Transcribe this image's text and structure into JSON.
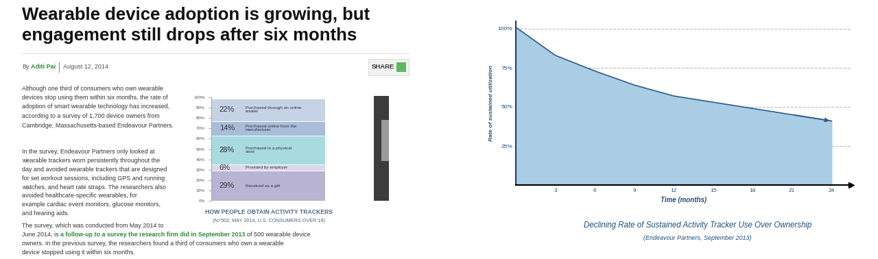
{
  "article": {
    "headline": [
      "Wearable device adoption is growing, but",
      "engagement still drops after six months"
    ],
    "byline_prefix": "By",
    "author": "Aditi Pai",
    "date": "August 12, 2014",
    "share": "SHARE",
    "paragraphs": [
      {
        "lines": [
          "Although one third of consumers who own wearable",
          "devices stop using them within six months, the rate of",
          "adoption of smart wearable technology has increased,",
          "according to a survey of 1,700 device owners from",
          "Cambridge, Massachusetts-based Endeavour Partners."
        ]
      },
      {
        "lines": [
          "In the survey, Endeavour Partners only looked at",
          "wearable trackers worn persistently throughout the",
          "day and avoided wearable trackers that are designed",
          "for set workout sessions, including GPS and running",
          "watches, and heart rate straps. The researchers also",
          "avoided healthcare-specific wearables, for",
          "example cardiac event monitors, glucose monitors,",
          "and hearing aids."
        ]
      },
      {
        "lines": [
          "The survey, which was conducted from May 2014 to",
          "June 2014, is a follow-up to a survey the research firm did in September 2013 of 500 wearable device",
          "owners. In the previous survey, the researchers found a third of consumers who own a wearable",
          "device stopped using it within six months."
        ],
        "link": "a follow-up to a survey the research firm did in September 2013"
      }
    ]
  },
  "chart_data": [
    {
      "type": "bar",
      "stacked": true,
      "title": "HOW PEOPLE OBTAIN ACTIVITY TRACKERS",
      "subtitle": "(N=502, MAY 2014, U.S. CONSUMERS OVER 18)",
      "categories": [
        null
      ],
      "series": [
        {
          "name": "Received as a gift",
          "color": "#b9b3d4",
          "values": [
            29
          ],
          "value_labels": [
            "29%"
          ]
        },
        {
          "name": "Provided by employer",
          "color": "#dcd7ea",
          "values": [
            6
          ],
          "value_labels": [
            "6%"
          ]
        },
        {
          "name": "Purchased in a physical store",
          "color": "#a8dbe0",
          "values": [
            28
          ],
          "value_labels": [
            "28%"
          ]
        },
        {
          "name": "Purchased online from the manufacturer",
          "color": "#a9bcd9",
          "values": [
            14
          ],
          "value_labels": [
            "14%"
          ]
        },
        {
          "name": "Purchased through an online retailer",
          "color": "#c6d3e6",
          "values": [
            22
          ],
          "value_labels": [
            "22%"
          ]
        }
      ],
      "ylim": [
        0,
        100
      ],
      "yticks": [
        {
          "value": 0,
          "label": "0%"
        },
        {
          "value": 10,
          "label": "10%"
        },
        {
          "value": 20,
          "label": "20%"
        },
        {
          "value": 30,
          "label": "30%"
        },
        {
          "value": 40,
          "label": "40%"
        },
        {
          "value": 50,
          "label": "50%"
        },
        {
          "value": 60,
          "label": "60%"
        },
        {
          "value": 70,
          "label": "70%"
        },
        {
          "value": 80,
          "label": "80%"
        },
        {
          "value": 90,
          "label": "90%"
        },
        {
          "value": 100,
          "label": "100%"
        }
      ],
      "data_labels": true,
      "tick_labels": "y"
    },
    {
      "type": "area",
      "title": "Declining Rate of Sustained Activity Tracker Use Over Ownership",
      "subtitle": "(Endeavour Partners, September 2013)",
      "xlabel": "Time (months)",
      "ylabel": "Rate of sustained utilization",
      "x": [
        0,
        3,
        6,
        9,
        12,
        15,
        18,
        21,
        24
      ],
      "values": [
        101,
        83,
        73,
        64,
        57,
        53,
        49,
        45,
        41
      ],
      "color": "#a9cde5",
      "xlim": [
        0,
        25.5
      ],
      "ylim": [
        0,
        105
      ],
      "xticks": [
        3,
        6,
        9,
        12,
        15,
        18,
        21,
        24
      ],
      "yticks": [
        {
          "value": 25,
          "label": "25%"
        },
        {
          "value": 50,
          "label": "50%"
        },
        {
          "value": 75,
          "label": "75%"
        },
        {
          "value": 100,
          "label": "100%"
        }
      ],
      "grid": true
    }
  ]
}
